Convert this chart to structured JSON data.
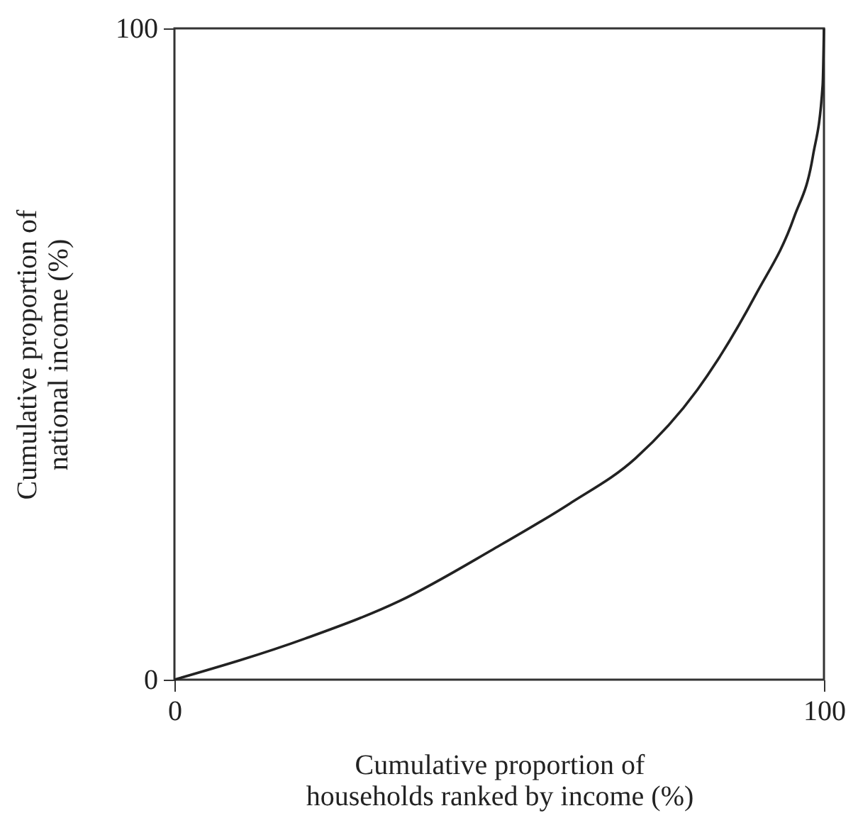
{
  "chart_data": {
    "type": "line",
    "xlabel": "Cumulative proportion of\nhouseholds ranked by income (%)",
    "ylabel": "Cumulative proportion of\nnational income (%)",
    "x": [
      0,
      20.1,
      34.7,
      49.2,
      60.8,
      71.0,
      80.5,
      89.6,
      95.4,
      98.3,
      99.8,
      100
    ],
    "series": [
      {
        "color": "#222222",
        "values": [
          0,
          6.3,
          12.1,
          20.1,
          27.0,
          34.0,
          44.5,
          59.3,
          71.0,
          80.4,
          91.3,
          100
        ]
      }
    ],
    "xlim": [
      0,
      100
    ],
    "ylim": [
      0,
      100
    ],
    "xticks": [
      0,
      100
    ],
    "yticks": [
      0,
      100
    ],
    "grid": false,
    "marker": "none",
    "line_style": "solid"
  }
}
